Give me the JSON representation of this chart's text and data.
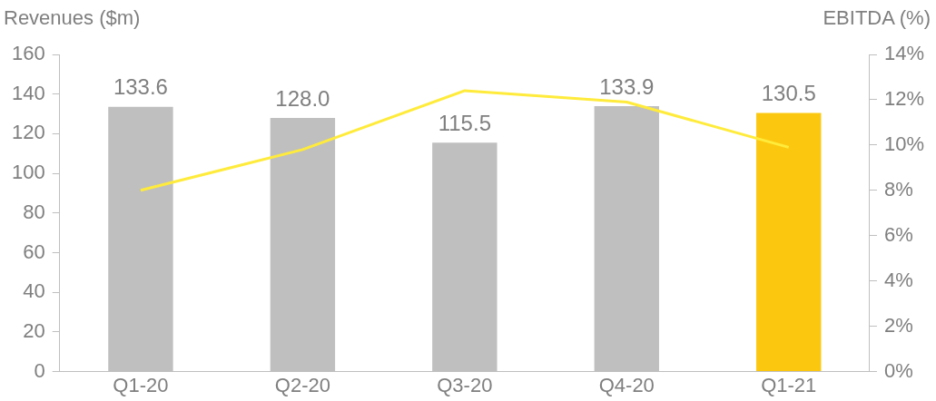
{
  "chart_data": {
    "type": "bar",
    "ylabel": "Revenues ($m)",
    "y2label": "EBITDA (%)",
    "categories": [
      "Q1-20",
      "Q2-20",
      "Q3-20",
      "Q4-20",
      "Q1-21"
    ],
    "series": [
      {
        "type": "bar",
        "colors": [
          "#bfbfbf",
          "#bfbfbf",
          "#bfbfbf",
          "#bfbfbf",
          "#fcc80f"
        ],
        "values": [
          133.6,
          128.0,
          115.5,
          133.9,
          130.5
        ],
        "value_labels": [
          "133.6",
          "128.0",
          "115.5",
          "133.9",
          "130.5"
        ]
      },
      {
        "type": "line",
        "axis": "y2",
        "color": "#ffeb3b",
        "values": [
          8.0,
          9.8,
          12.4,
          11.9,
          9.9
        ],
        "marker": "none"
      }
    ],
    "ylim": [
      0,
      160
    ],
    "yticks": [
      0,
      20,
      40,
      60,
      80,
      100,
      120,
      140,
      160
    ],
    "y2lim": [
      0,
      14
    ],
    "y2ticks": [
      {
        "value": 0,
        "label": "0%"
      },
      {
        "value": 2,
        "label": "2%"
      },
      {
        "value": 4,
        "label": "4%"
      },
      {
        "value": 6,
        "label": "6%"
      },
      {
        "value": 8,
        "label": "8%"
      },
      {
        "value": 10,
        "label": "10%"
      },
      {
        "value": 12,
        "label": "12%"
      },
      {
        "value": 14,
        "label": "14%"
      }
    ],
    "grid": false,
    "legend": false
  }
}
